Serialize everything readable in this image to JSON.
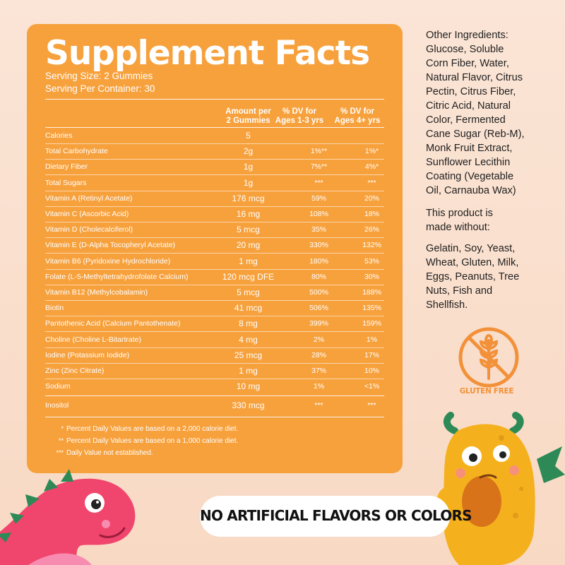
{
  "panel": {
    "title": "Supplement Facts",
    "serving_size": "Serving Size: 2 Gummies",
    "serving_per_container": "Serving Per Container: 30",
    "headers": {
      "amount_line1": "Amount per",
      "amount_line2": "2 Gummies",
      "dv1_line1": "% DV for",
      "dv1_line2": "Ages 1-3 yrs",
      "dv2_line1": "% DV for",
      "dv2_line2": "Ages 4+ yrs"
    },
    "rows": [
      {
        "name": "Calories",
        "amount": "5",
        "dv1": "",
        "dv2": ""
      },
      {
        "name": "Total Carbohydrate",
        "amount": "2g",
        "dv1": "1%**",
        "dv2": "1%*"
      },
      {
        "name": "Dietary Fiber",
        "amount": "1g",
        "dv1": "7%**",
        "dv2": "4%*"
      },
      {
        "name": "Total Sugars",
        "amount": "1g",
        "dv1": "***",
        "dv2": "***"
      },
      {
        "name": "Vitamin A (Retinyl Acetate)",
        "amount": "176 mcg",
        "dv1": "59%",
        "dv2": "20%"
      },
      {
        "name": "Vitamin C (Ascorbic Acid)",
        "amount": "16 mg",
        "dv1": "108%",
        "dv2": "18%"
      },
      {
        "name": "Vitamin D (Cholecalciferol)",
        "amount": "5 mcg",
        "dv1": "35%",
        "dv2": "26%"
      },
      {
        "name": "Vitamin E (D-Alpha Tocopheryl Acetate)",
        "amount": "20 mg",
        "dv1": "330%",
        "dv2": "132%"
      },
      {
        "name": "Vitamin B6 (Pyridoxine Hydrochloride)",
        "amount": "1 mg",
        "dv1": "180%",
        "dv2": "53%"
      },
      {
        "name": "Folate (L-5-Methyltetrahydrofolate Calcium)",
        "amount": "120 mcg DFE",
        "dv1": "80%",
        "dv2": "30%"
      },
      {
        "name": "Vitamin B12 (Methylcobalamin)",
        "amount": "5 mcg",
        "dv1": "500%",
        "dv2": "188%"
      },
      {
        "name": "Biotin",
        "amount": "41 mcg",
        "dv1": "506%",
        "dv2": "135%"
      },
      {
        "name": "Pantothenic Acid (Calcium Pantothenate)",
        "amount": "8 mg",
        "dv1": "399%",
        "dv2": "159%"
      },
      {
        "name": "Choline (Choline L-Bitartrate)",
        "amount": "4 mg",
        "dv1": "2%",
        "dv2": "1%"
      },
      {
        "name": "Iodine (Potassium Iodide)",
        "amount": "25 mcg",
        "dv1": "28%",
        "dv2": "17%"
      },
      {
        "name": "Zinc (Zinc Citrate)",
        "amount": "1 mg",
        "dv1": "37%",
        "dv2": "10%"
      },
      {
        "name": "Sodium",
        "amount": "10 mg",
        "dv1": "1%",
        "dv2": "<1%"
      },
      {
        "name": "Inositol",
        "amount": "330 mcg",
        "dv1": "***",
        "dv2": "***"
      }
    ],
    "footnotes": [
      {
        "mark": "*",
        "text": "Percent Daily Values are based on a 2,000 calorie diet."
      },
      {
        "mark": "**",
        "text": "Percent Daily Values are based on a 1,000 calorie diet."
      },
      {
        "mark": "***",
        "text": "Daily Value not established."
      }
    ]
  },
  "side": {
    "other_ingredients": [
      "Other Ingredients:",
      "Glucose,  Soluble",
      "Corn Fiber, Water,",
      "Natural Flavor, Citrus",
      "Pectin, Citrus Fiber,",
      "Citric Acid, Natural",
      "Color, Fermented",
      "Cane Sugar (Reb-M),",
      "Monk Fruit Extract,",
      "Sunflower Lecithin",
      "Coating (Vegetable",
      "Oil, Carnauba Wax)"
    ],
    "made_without_intro": [
      "This product is",
      "made without:"
    ],
    "made_without_list": [
      "Gelatin, Soy, Yeast,",
      "Wheat, Gluten, Milk,",
      "Eggs, Peanuts, Tree",
      "Nuts, Fish and",
      "Shellfish."
    ],
    "gluten_free_label": "GLUTEN FREE"
  },
  "banner": {
    "text": "NO ARTIFICIAL FLAVORS OR COLORS"
  },
  "colors": {
    "panel": "#f7a13d",
    "background": "#fbe5d6",
    "accent": "#f2913a",
    "dino": "#f0456c",
    "monster": "#f5b11d"
  },
  "icons": [
    "gluten-free-wheat-icon",
    "pink-dinosaur-mascot",
    "yellow-monster-mascot"
  ]
}
